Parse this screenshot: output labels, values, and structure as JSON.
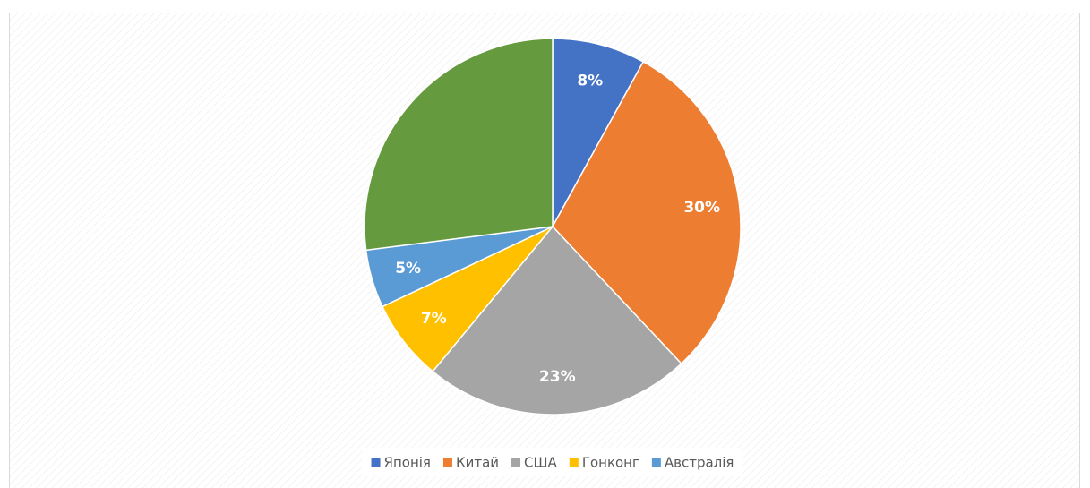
{
  "chart_data": {
    "type": "pie",
    "categories": [
      "Японія",
      "Китай",
      "США",
      "Гонконг",
      "Австралія",
      null
    ],
    "values": [
      8,
      30,
      23,
      7,
      5,
      27
    ],
    "value_labels": [
      "8%",
      "30%",
      "23%",
      "7%",
      "5%",
      null
    ],
    "colors": [
      "#4472c4",
      "#ed7d31",
      "#a5a5a5",
      "#ffc000",
      "#5b9bd5",
      "#659a3f"
    ],
    "legend": "bottom"
  }
}
